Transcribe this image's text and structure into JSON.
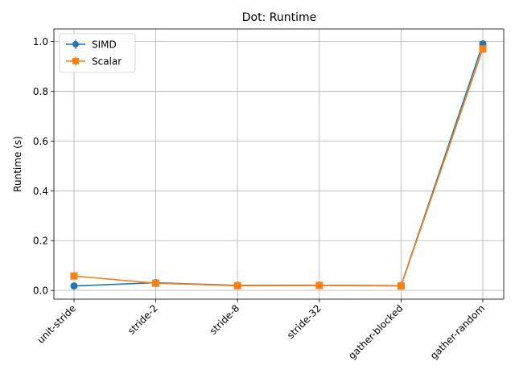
{
  "chart_data": {
    "type": "line",
    "title": "Dot: Runtime",
    "xlabel": "",
    "ylabel": "Runtime (s)",
    "categories": [
      "unit-stride",
      "stride-2",
      "stride-8",
      "stride-32",
      "gather-blocked",
      "gather-random"
    ],
    "ylim": [
      -0.035,
      1.05
    ],
    "yticks": [
      0.0,
      0.2,
      0.4,
      0.6,
      0.8,
      1.0
    ],
    "ytick_labels": [
      "0.0",
      "0.2",
      "0.4",
      "0.6",
      "0.8",
      "1.0"
    ],
    "grid": true,
    "legend_position": "top-left",
    "series": [
      {
        "name": "SIMD",
        "color": "#1f77b4",
        "marker": "circle",
        "values": [
          0.018,
          0.031,
          0.02,
          0.021,
          0.019,
          0.99
        ],
        "errors": [
          0.002,
          0.002,
          0.002,
          0.002,
          0.002,
          0.008
        ]
      },
      {
        "name": "Scalar",
        "color": "#ff7f0e",
        "marker": "square",
        "values": [
          0.058,
          0.029,
          0.019,
          0.02,
          0.018,
          0.97
        ],
        "errors": [
          0.002,
          0.002,
          0.002,
          0.002,
          0.002,
          0.008
        ]
      }
    ]
  }
}
